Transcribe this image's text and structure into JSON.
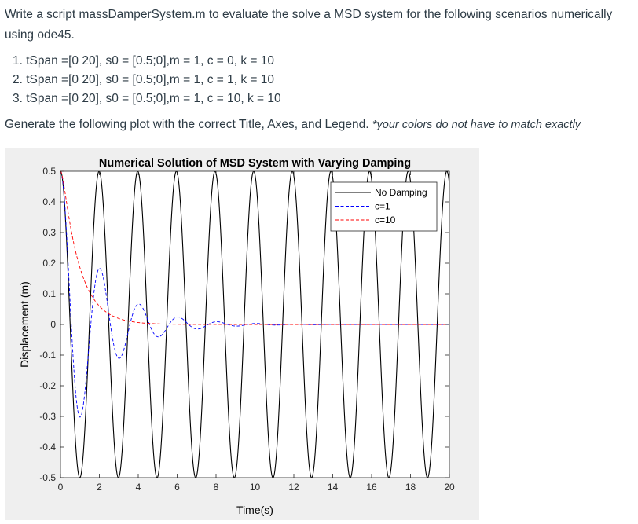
{
  "question": {
    "intro": "Write a script massDamperSystem.m to evaluate the solve a MSD system for the following scenarios numerically using ode45.",
    "steps": [
      "1. tSpan =[0 20], s0 = [0.5;0],m = 1, c = 0, k = 10",
      "2. tSpan =[0 20], s0 = [0.5;0],m = 1, c = 1, k = 10",
      "3. tSpan =[0 20], s0 = [0.5;0],m = 1, c = 10, k = 10"
    ],
    "generate": "Generate the following plot with the correct Title, Axes, and Legend.",
    "note": "*your colors do not have to match exactly"
  },
  "chart_data": {
    "type": "line",
    "title": "Numerical Solution of MSD System with Varying Damping",
    "xlabel": "Time(s)",
    "ylabel": "Displacement (m)",
    "xlim": [
      0,
      20
    ],
    "ylim": [
      -0.5,
      0.5
    ],
    "xticks": [
      "0",
      "2",
      "4",
      "6",
      "8",
      "10",
      "12",
      "14",
      "16",
      "18",
      "20"
    ],
    "yticks": [
      "0.5",
      "0.4",
      "0.3",
      "0.2",
      "0.1",
      "0",
      "-0.1",
      "-0.2",
      "-0.3",
      "-0.4",
      "-0.5"
    ],
    "legend_position": "top-right",
    "series": [
      {
        "name": "No Damping",
        "color": "#000000",
        "style": "solid",
        "m": 1,
        "c": 0,
        "k": 10,
        "x0": 0.5,
        "v0": 0
      },
      {
        "name": "c=1",
        "color": "#0000ff",
        "style": "dashed",
        "m": 1,
        "c": 1,
        "k": 10,
        "x0": 0.5,
        "v0": 0
      },
      {
        "name": "c=10",
        "color": "#ff0000",
        "style": "dashed",
        "m": 1,
        "c": 10,
        "k": 10,
        "x0": 0.5,
        "v0": 0
      }
    ]
  }
}
